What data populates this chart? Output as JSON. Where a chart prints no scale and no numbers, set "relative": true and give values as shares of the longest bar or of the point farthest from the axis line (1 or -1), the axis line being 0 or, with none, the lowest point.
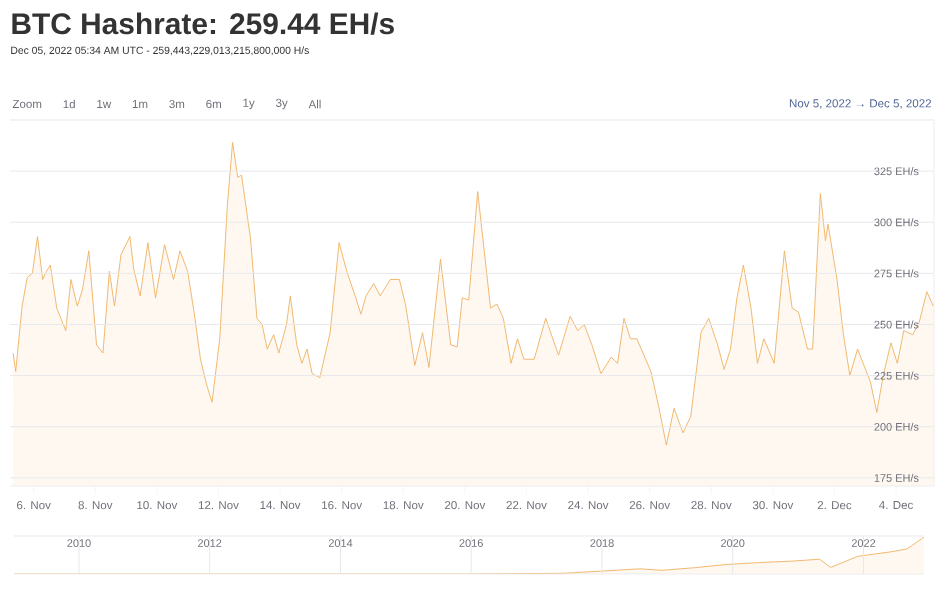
{
  "chart_data": [
    {
      "type": "area",
      "title": "BTC Hashrate: 259.44 EH/s",
      "subtitle": "Dec 05, 2022 05:34 AM UTC - 259,443,229,013,215,800,000 H/s",
      "annotations": [
        "Zoom",
        "1d",
        "1w",
        "1m",
        "3m",
        "6m",
        "1y",
        "3y",
        "All",
        "Nov 5, 2022 → Dec 5, 2022"
      ],
      "color": "#efb160",
      "grid": "y",
      "xlim": [
        "2022-11-05T05:34",
        "2022-12-05T05:34"
      ],
      "ylim": [
        171,
        350
      ],
      "xticks": [
        {
          "value": "2022-11-06",
          "label": "6. Nov"
        },
        {
          "value": "2022-11-08",
          "label": "8. Nov"
        },
        {
          "value": "2022-11-10",
          "label": "10. Nov"
        },
        {
          "value": "2022-11-12",
          "label": "12. Nov"
        },
        {
          "value": "2022-11-14",
          "label": "14. Nov"
        },
        {
          "value": "2022-11-16",
          "label": "16. Nov"
        },
        {
          "value": "2022-11-18",
          "label": "18. Nov"
        },
        {
          "value": "2022-11-20",
          "label": "20. Nov"
        },
        {
          "value": "2022-11-22",
          "label": "22. Nov"
        },
        {
          "value": "2022-11-24",
          "label": "24. Nov"
        },
        {
          "value": "2022-11-26",
          "label": "26. Nov"
        },
        {
          "value": "2022-11-28",
          "label": "28. Nov"
        },
        {
          "value": "2022-11-30",
          "label": "30. Nov"
        },
        {
          "value": "2022-12-02",
          "label": "2. Dec"
        },
        {
          "value": "2022-12-04",
          "label": "4. Dec"
        }
      ],
      "yticks": [
        {
          "value": 175,
          "label": "175 EH/s"
        },
        {
          "value": 200,
          "label": "200 EH/s"
        },
        {
          "value": 225,
          "label": "225 EH/s"
        },
        {
          "value": 250,
          "label": "250 EH/s"
        },
        {
          "value": 275,
          "label": "275 EH/s"
        },
        {
          "value": 300,
          "label": "300 EH/s"
        },
        {
          "value": 325,
          "label": "325 EH/s"
        },
        {
          "value": 350,
          "label": null
        }
      ],
      "x": [
        "2022-11-05T08:00",
        "2022-11-05T10:00",
        "2022-11-05T15:00",
        "2022-11-05T19:00",
        "2022-11-05T23:00",
        "2022-11-06T03:00",
        "2022-11-06T07:00",
        "2022-11-06T10:00",
        "2022-11-06T13:00",
        "2022-11-06T18:00",
        "2022-11-07T01:00",
        "2022-11-07T05:00",
        "2022-11-07T10:00",
        "2022-11-07T14:00",
        "2022-11-07T19:00",
        "2022-11-08T01:00",
        "2022-11-08T06:00",
        "2022-11-08T11:00",
        "2022-11-08T15:00",
        "2022-11-08T20:00",
        "2022-11-09T03:00",
        "2022-11-09T06:00",
        "2022-11-09T11:00",
        "2022-11-09T17:00",
        "2022-11-09T23:00",
        "2022-11-10T06:00",
        "2022-11-10T13:00",
        "2022-11-10T18:00",
        "2022-11-11T00:00",
        "2022-11-11T05:00",
        "2022-11-11T10:00",
        "2022-11-11T15:00",
        "2022-11-11T19:00",
        "2022-11-12T01:00",
        "2022-11-12T07:00",
        "2022-11-12T11:00",
        "2022-11-12T15:00",
        "2022-11-12T18:00",
        "2022-11-13T01:00",
        "2022-11-13T06:00",
        "2022-11-13T10:00",
        "2022-11-13T14:00",
        "2022-11-13T19:00",
        "2022-11-13T23:00",
        "2022-11-14T05:00",
        "2022-11-14T08:00",
        "2022-11-14T13:00",
        "2022-11-14T17:00",
        "2022-11-14T21:00",
        "2022-11-15T01:00",
        "2022-11-15T07:00",
        "2022-11-15T15:00",
        "2022-11-15T22:00",
        "2022-11-16T04:00",
        "2022-11-16T11:00",
        "2022-11-16T15:00",
        "2022-11-16T19:00",
        "2022-11-17T01:00",
        "2022-11-17T06:00",
        "2022-11-17T14:00",
        "2022-11-17T21:00",
        "2022-11-18T02:00",
        "2022-11-18T09:00",
        "2022-11-18T15:00",
        "2022-11-18T20:00",
        "2022-11-19T05:00",
        "2022-11-19T13:00",
        "2022-11-19T18:00",
        "2022-11-19T22:00",
        "2022-11-20T03:00",
        "2022-11-20T10:00",
        "2022-11-20T20:00",
        "2022-11-21T01:00",
        "2022-11-21T06:00",
        "2022-11-21T12:00",
        "2022-11-21T17:00",
        "2022-11-21T22:00",
        "2022-11-22T06:00",
        "2022-11-22T15:00",
        "2022-11-23T01:00",
        "2022-11-23T10:00",
        "2022-11-23T16:00",
        "2022-11-23T21:00",
        "2022-11-24T03:00",
        "2022-11-24T10:00",
        "2022-11-24T18:00",
        "2022-11-24T23:00",
        "2022-11-25T04:00",
        "2022-11-25T09:00",
        "2022-11-25T14:00",
        "2022-11-26T01:00",
        "2022-11-26T07:00",
        "2022-11-26T13:00",
        "2022-11-26T19:00",
        "2022-11-27T02:00",
        "2022-11-27T08:00",
        "2022-11-27T16:00",
        "2022-11-27T22:00",
        "2022-11-28T05:00",
        "2022-11-28T10:00",
        "2022-11-28T15:00",
        "2022-11-28T20:00",
        "2022-11-29T01:00",
        "2022-11-29T07:00",
        "2022-11-29T12:00",
        "2022-11-29T17:00",
        "2022-11-30T01:00",
        "2022-11-30T09:00",
        "2022-11-30T15:00",
        "2022-11-30T20:00",
        "2022-12-01T03:00",
        "2022-12-01T07:00",
        "2022-12-01T13:00",
        "2022-12-01T17:00",
        "2022-12-01T19:00",
        "2022-12-02T02:00",
        "2022-12-02T07:00",
        "2022-12-02T12:00",
        "2022-12-02T18:00",
        "2022-12-02T23:00",
        "2022-12-03T04:00",
        "2022-12-03T09:00",
        "2022-12-03T14:00",
        "2022-12-03T20:00",
        "2022-12-04T01:00",
        "2022-12-04T06:00",
        "2022-12-04T13:00",
        "2022-12-04T18:00",
        "2022-12-05T00:00",
        "2022-12-05T05:00"
      ],
      "values": [
        236,
        227,
        259,
        273,
        275,
        293,
        272,
        276,
        279,
        258,
        247,
        272,
        259,
        267,
        286,
        240,
        236,
        276,
        259,
        284,
        293,
        277,
        264,
        290,
        263,
        289,
        272,
        286,
        276,
        256,
        233,
        220,
        212,
        243,
        309,
        339,
        322,
        323,
        292,
        253,
        250,
        238,
        245,
        236,
        250,
        264,
        240,
        231,
        238,
        226,
        224,
        246,
        290,
        276,
        263,
        255,
        264,
        270,
        264,
        272,
        272,
        259,
        230,
        246,
        229,
        282,
        240,
        239,
        263,
        262,
        315,
        258,
        260,
        253,
        231,
        243,
        233,
        233,
        253,
        235,
        254,
        247,
        250,
        240,
        226,
        234,
        231,
        253,
        243,
        243,
        227,
        210,
        191,
        209,
        197,
        205,
        246,
        253,
        240,
        228,
        238,
        263,
        279,
        258,
        231,
        243,
        231,
        286,
        258,
        256,
        238,
        238,
        314,
        291,
        299,
        272,
        245,
        225,
        238,
        230,
        222,
        207,
        225,
        241,
        231,
        247,
        245,
        251,
        266,
        259
      ]
    },
    {
      "type": "area",
      "relative": true,
      "color": "#efb160",
      "grid": "x",
      "xlim": [
        "2009-01-03",
        "2022-12-05"
      ],
      "xticks": [
        {
          "value": "2010-01-01",
          "label": "2010"
        },
        {
          "value": "2012-01-01",
          "label": "2012"
        },
        {
          "value": "2014-01-01",
          "label": "2014"
        },
        {
          "value": "2016-01-01",
          "label": "2016"
        },
        {
          "value": "2018-01-01",
          "label": "2018"
        },
        {
          "value": "2020-01-01",
          "label": "2020"
        },
        {
          "value": "2022-01-01",
          "label": "2022"
        }
      ],
      "x": [
        "2009-01-03",
        "2016-01-01",
        "2017-06-01",
        "2018-01-01",
        "2018-08-01",
        "2018-12-01",
        "2019-06-01",
        "2019-12-01",
        "2020-06-01",
        "2020-12-01",
        "2021-05-01",
        "2021-07-01",
        "2021-12-01",
        "2022-06-01",
        "2022-09-01",
        "2022-12-05"
      ],
      "values": [
        0,
        0,
        0.02,
        0.08,
        0.14,
        0.1,
        0.17,
        0.26,
        0.31,
        0.35,
        0.4,
        0.18,
        0.48,
        0.6,
        0.68,
        1
      ]
    }
  ]
}
